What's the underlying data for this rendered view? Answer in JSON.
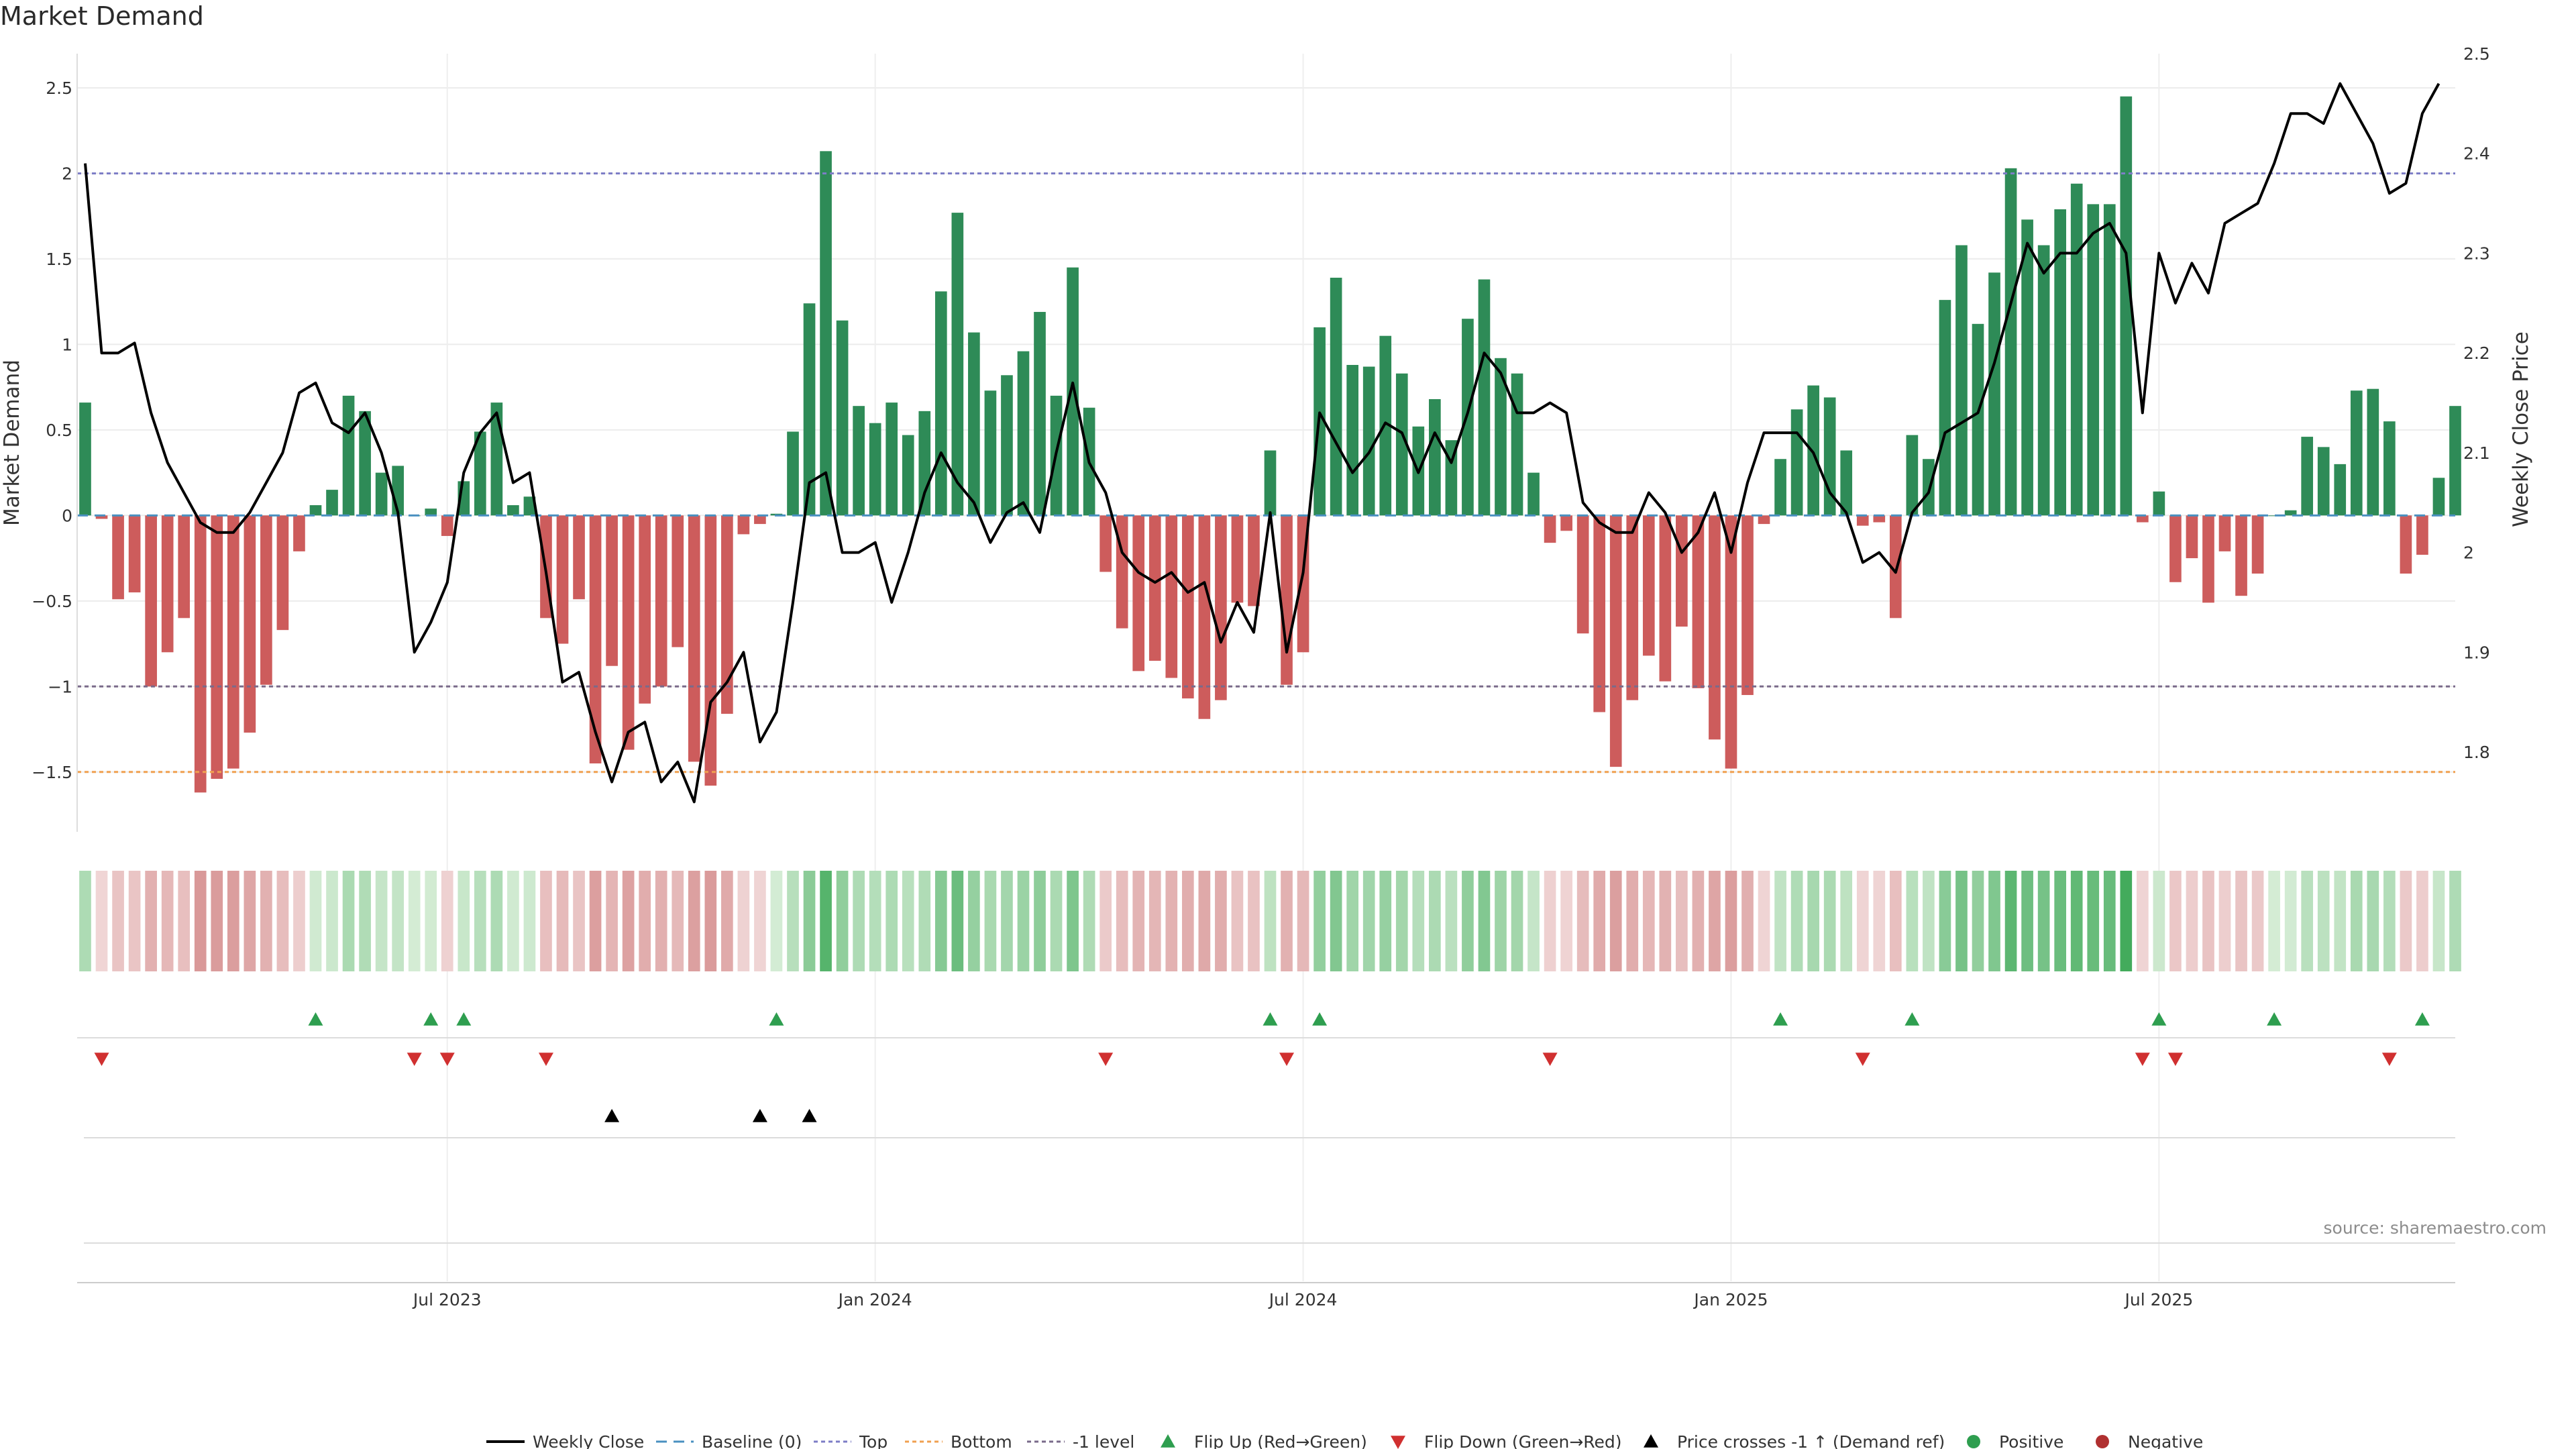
{
  "title": "Market Demand",
  "source": "source: sharemaestro.com",
  "chart_data": {
    "type": "bar",
    "left_axis": {
      "label": "Market Demand",
      "ylim": [
        -1.85,
        2.7
      ],
      "ticks": [
        "2.5",
        "2",
        "1.5",
        "1",
        "0.5",
        "0",
        "−0.5",
        "−1",
        "−1.5"
      ],
      "tick_values": [
        2.5,
        2,
        1.5,
        1,
        0.5,
        0,
        -0.5,
        -1,
        -1.5
      ]
    },
    "right_axis": {
      "label": "Weekly Close Price",
      "ylim": [
        1.72,
        2.5
      ],
      "ticks": [
        "2.5",
        "2.4",
        "2.3",
        "2.2",
        "2.1",
        "2",
        "1.9",
        "1.8"
      ],
      "tick_values": [
        2.5,
        2.4,
        2.3,
        2.2,
        2.1,
        2.0,
        1.9,
        1.8
      ]
    },
    "x_ticks": [
      "Jul 2023",
      "Jan 2024",
      "Jul 2024",
      "Jan 2025",
      "Jul 2025"
    ],
    "x_tick_weeks": [
      22,
      48,
      74,
      100,
      126
    ],
    "reference_lines": {
      "top": 2.0,
      "bottom": -1.5,
      "minus_one": -1.0,
      "baseline": 0
    },
    "colors": {
      "positive": "#2e8b57",
      "negative": "#cd5c5c",
      "price": "#000000",
      "top": "#7d7dc6",
      "bottom": "#f0a050",
      "minus_one": "#7a6a8a",
      "baseline": "#4a90c0",
      "flip_up": "#2e9e4f",
      "flip_down": "#d03030"
    },
    "demand": [
      0.66,
      -0.02,
      -0.49,
      -0.45,
      -1.0,
      -0.8,
      -0.6,
      -1.62,
      -1.54,
      -1.48,
      -1.27,
      -0.99,
      -0.67,
      -0.21,
      0.06,
      0.15,
      0.7,
      0.61,
      0.25,
      0.29,
      0.0,
      0.04,
      -0.12,
      0.2,
      0.49,
      0.66,
      0.06,
      0.11,
      -0.6,
      -0.75,
      -0.49,
      -1.45,
      -0.88,
      -1.37,
      -1.1,
      -1.0,
      -0.77,
      -1.44,
      -1.58,
      -1.16,
      -0.11,
      -0.05,
      0.01,
      0.49,
      1.24,
      2.13,
      1.14,
      0.64,
      0.54,
      0.66,
      0.47,
      0.61,
      1.31,
      1.77,
      1.07,
      0.73,
      0.82,
      0.96,
      1.19,
      0.7,
      1.45,
      0.63,
      -0.33,
      -0.66,
      -0.91,
      -0.85,
      -0.95,
      -1.07,
      -1.19,
      -1.08,
      -0.51,
      -0.53,
      0.38,
      -0.99,
      -0.8,
      1.1,
      1.39,
      0.88,
      0.87,
      1.05,
      0.83,
      0.52,
      0.68,
      0.44,
      1.15,
      1.38,
      0.92,
      0.83,
      0.25,
      -0.16,
      -0.09,
      -0.69,
      -1.15,
      -1.47,
      -1.08,
      -0.82,
      -0.97,
      -0.65,
      -1.01,
      -1.31,
      -1.48,
      -1.05,
      -0.05,
      0.33,
      0.62,
      0.76,
      0.69,
      0.38,
      -0.06,
      -0.04,
      -0.6,
      0.47,
      0.33,
      1.26,
      1.58,
      1.12,
      1.42,
      2.03,
      1.73,
      1.58,
      1.79,
      1.94,
      1.82,
      1.82,
      2.45,
      -0.04,
      0.14,
      -0.39,
      -0.25,
      -0.51,
      -0.21,
      -0.47,
      -0.34,
      0.0,
      0.03,
      0.46,
      0.4,
      0.3,
      0.73,
      0.74,
      0.55,
      -0.34,
      -0.23,
      0.22,
      0.64
    ],
    "price": [
      2.39,
      2.2,
      2.2,
      2.21,
      2.14,
      2.09,
      2.06,
      2.03,
      2.02,
      2.02,
      2.04,
      2.07,
      2.1,
      2.16,
      2.17,
      2.13,
      2.12,
      2.14,
      2.1,
      2.04,
      1.9,
      1.93,
      1.97,
      2.08,
      2.12,
      2.14,
      2.07,
      2.08,
      1.98,
      1.87,
      1.88,
      1.82,
      1.77,
      1.82,
      1.83,
      1.77,
      1.79,
      1.75,
      1.85,
      1.87,
      1.9,
      1.81,
      1.84,
      1.95,
      2.07,
      2.08,
      2.0,
      2.0,
      2.01,
      1.95,
      2.0,
      2.06,
      2.1,
      2.07,
      2.05,
      2.01,
      2.04,
      2.05,
      2.02,
      2.1,
      2.17,
      2.09,
      2.06,
      2.0,
      1.98,
      1.97,
      1.98,
      1.96,
      1.97,
      1.91,
      1.95,
      1.92,
      2.04,
      1.9,
      1.98,
      2.14,
      2.11,
      2.08,
      2.1,
      2.13,
      2.12,
      2.08,
      2.12,
      2.09,
      2.14,
      2.2,
      2.18,
      2.14,
      2.14,
      2.15,
      2.14,
      2.05,
      2.03,
      2.02,
      2.02,
      2.06,
      2.04,
      2.0,
      2.02,
      2.06,
      2.0,
      2.07,
      2.12,
      2.12,
      2.12,
      2.1,
      2.06,
      2.04,
      1.99,
      2.0,
      1.98,
      2.04,
      2.06,
      2.12,
      2.13,
      2.14,
      2.19,
      2.25,
      2.31,
      2.28,
      2.3,
      2.3,
      2.32,
      2.33,
      2.3,
      2.14,
      2.3,
      2.25,
      2.29,
      2.26,
      2.33,
      2.34,
      2.35,
      2.39,
      2.44,
      2.44,
      2.43,
      2.47,
      2.44,
      2.41,
      2.36,
      2.37,
      2.44,
      2.47
    ],
    "flip_up_weeks": [
      14,
      21,
      23,
      42,
      72,
      75,
      103,
      111,
      126,
      133,
      142
    ],
    "flip_down_weeks": [
      1,
      20,
      22,
      28,
      62,
      73,
      89,
      108,
      125,
      127,
      140
    ],
    "price_cross_weeks": [
      32,
      41,
      44
    ]
  },
  "legend": {
    "weekly_close": "Weekly Close",
    "baseline": "Baseline (0)",
    "top": "Top",
    "bottom": "Bottom",
    "minus_one": "-1 level",
    "flip_up": "Flip Up (Red→Green)",
    "flip_down": "Flip Down (Green→Red)",
    "price_cross": "Price crosses -1 ↑ (Demand ref)",
    "positive": "Positive",
    "negative": "Negative"
  }
}
